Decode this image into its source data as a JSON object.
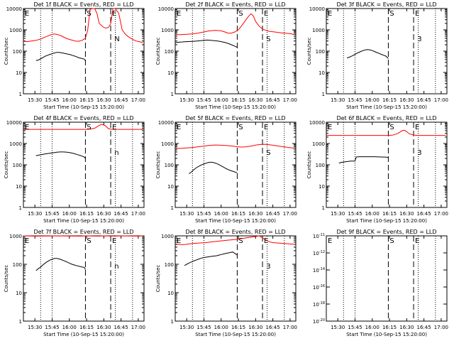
{
  "page": {
    "background": "#ffffff"
  },
  "styles": {
    "events_color": "#000000",
    "lld_color": "#ff0000",
    "axis_color": "#000000"
  },
  "x_ticks": [
    "15:30",
    "15:45",
    "16:00",
    "16:15",
    "16:30",
    "16:45",
    "17:00"
  ],
  "x_tick_minutes": [
    30,
    45,
    60,
    75,
    90,
    105,
    120
  ],
  "xlim_minutes": [
    20,
    125
  ],
  "dotted_lines_minutes": [
    35,
    45,
    100,
    115
  ],
  "dashed_lines_minutes": [
    74,
    96
  ],
  "xlabel": "Start Time (10-Sep-15 15:20:00)",
  "ylabel": "Counts/sec",
  "y_ticks_decade": [
    "1",
    "10",
    "100",
    "1000",
    "10000"
  ],
  "y_ticks_sci": [
    "10-11",
    "10-12",
    "10-14",
    "10-16",
    "10-18",
    "10-20"
  ],
  "chart_data": [
    {
      "type": "line",
      "title": "Det 1f BLACK = Events, RED = LLD",
      "xlabel": "Start Time (10-Sep-15 15:20:00)",
      "ylabel": "Counts/sec",
      "ylim": [
        1,
        10000
      ],
      "y_scale": "log",
      "markers": [
        {
          "label": "E",
          "x": 20
        },
        {
          "label": "S",
          "x": 74
        },
        {
          "label": "E",
          "x": 96
        },
        {
          "label": "N",
          "x": 98
        }
      ],
      "series": [
        {
          "color": "#ff0000",
          "x": [
            20,
            23,
            27,
            31,
            35,
            38,
            41,
            44,
            47,
            50,
            53,
            56,
            59,
            62,
            65,
            68,
            71,
            74,
            76,
            78,
            80,
            82,
            84,
            86,
            88,
            90,
            92,
            94,
            96,
            98,
            100,
            103,
            106,
            109,
            112,
            115,
            118,
            121,
            124
          ],
          "y": [
            290,
            280,
            300,
            320,
            370,
            440,
            510,
            590,
            640,
            600,
            520,
            430,
            370,
            330,
            300,
            290,
            320,
            400,
            1000,
            9000,
            10000,
            10000,
            6000,
            2000,
            1600,
            1300,
            1200,
            1300,
            1900,
            10000,
            10000,
            6000,
            1000,
            600,
            450,
            360,
            300,
            280,
            250
          ]
        },
        {
          "color": "#000000",
          "x": [
            31,
            33,
            35,
            37,
            39,
            41,
            43,
            45,
            47,
            49,
            51,
            53,
            55,
            57,
            59,
            61,
            63,
            65,
            67,
            69,
            71,
            72,
            73,
            74
          ],
          "y": [
            36,
            38,
            44,
            50,
            58,
            64,
            70,
            76,
            82,
            88,
            87,
            84,
            80,
            76,
            72,
            68,
            62,
            58,
            52,
            48,
            45,
            44,
            42,
            36
          ]
        }
      ]
    },
    {
      "type": "line",
      "title": "Det 2f BLACK = Events, RED = LLD",
      "xlabel": "Start Time (10-Sep-15 15:20:00)",
      "ylabel": "Counts/sec",
      "ylim": [
        1,
        10000
      ],
      "y_scale": "log",
      "markers": [
        {
          "label": "E",
          "x": 20
        },
        {
          "label": "S",
          "x": 74
        },
        {
          "label": "E",
          "x": 96
        },
        {
          "label": "S",
          "x": 98
        }
      ],
      "series": [
        {
          "color": "#ff0000",
          "x": [
            20,
            25,
            30,
            35,
            40,
            45,
            50,
            55,
            60,
            63,
            66,
            69,
            72,
            75,
            78,
            81,
            84,
            86,
            88,
            90,
            93,
            96,
            99,
            102,
            106,
            110,
            114,
            118,
            121,
            124
          ],
          "y": [
            600,
            600,
            620,
            650,
            700,
            800,
            900,
            950,
            900,
            800,
            700,
            700,
            800,
            1000,
            1600,
            2700,
            4400,
            5700,
            4500,
            2500,
            1500,
            1100,
            950,
            850,
            800,
            750,
            700,
            680,
            650,
            600
          ]
        },
        {
          "color": "#000000",
          "x": [
            20,
            22,
            24,
            26,
            28,
            30,
            33,
            36,
            39,
            42,
            45,
            48,
            51,
            54,
            57,
            60,
            63,
            66,
            69,
            72,
            74
          ],
          "y": [
            250,
            260,
            265,
            270,
            275,
            280,
            285,
            290,
            300,
            310,
            320,
            330,
            320,
            310,
            300,
            280,
            260,
            230,
            200,
            170,
            150
          ]
        }
      ]
    },
    {
      "type": "line",
      "title": "Det 3f BLACK = Events, RED = LLD",
      "xlabel": "Start Time (10-Sep-15 15:20:00)",
      "ylabel": "Counts/sec",
      "ylim": [
        1,
        10000
      ],
      "y_scale": "log",
      "markers": [
        {
          "label": "E",
          "x": 20
        },
        {
          "label": "S",
          "x": 74
        },
        {
          "label": "E",
          "x": 96
        },
        {
          "label": "3",
          "x": 98
        }
      ],
      "series": [
        {
          "color": "#000000",
          "x": [
            38,
            40,
            42,
            44,
            46,
            48,
            50,
            52,
            54,
            56,
            58,
            60,
            62,
            64,
            66,
            68,
            70,
            72,
            74
          ],
          "y": [
            48,
            52,
            58,
            66,
            76,
            86,
            96,
            106,
            114,
            118,
            114,
            106,
            96,
            86,
            78,
            70,
            64,
            58,
            45
          ]
        }
      ]
    },
    {
      "type": "line",
      "title": "Det 4f BLACK = Events, RED = LLD",
      "xlabel": "Start Time (10-Sep-15 15:20:00)",
      "ylabel": "Counts/sec",
      "ylim": [
        1,
        10000
      ],
      "y_scale": "log",
      "markers": [
        {
          "label": "E",
          "x": 20
        },
        {
          "label": "S",
          "x": 74
        },
        {
          "label": "E",
          "x": 96
        },
        {
          "label": "n",
          "x": 98
        }
      ],
      "series": [
        {
          "color": "#ff0000",
          "x": [
            20,
            30,
            40,
            50,
            60,
            70,
            74,
            78,
            82,
            85,
            88,
            91,
            94,
            97,
            100,
            105,
            110,
            115,
            120,
            124
          ],
          "y": [
            4600,
            4600,
            4600,
            4600,
            4600,
            4600,
            4600,
            4700,
            5200,
            6500,
            8000,
            7000,
            5000,
            4600,
            4600,
            4600,
            4600,
            4600,
            4600,
            4600
          ]
        },
        {
          "color": "#000000",
          "x": [
            31,
            34,
            37,
            40,
            43,
            46,
            49,
            52,
            55,
            58,
            61,
            64,
            67,
            70,
            73,
            74
          ],
          "y": [
            270,
            290,
            310,
            330,
            350,
            370,
            390,
            400,
            400,
            390,
            370,
            340,
            300,
            270,
            230,
            200
          ]
        }
      ]
    },
    {
      "type": "line",
      "title": "Det 5f BLACK = Events, RED = LLD",
      "xlabel": "Start Time (10-Sep-15 15:20:00)",
      "ylabel": "Counts/sec",
      "ylim": [
        1,
        10000
      ],
      "y_scale": "log",
      "markers": [
        {
          "label": "E",
          "x": 20
        },
        {
          "label": "S",
          "x": 74
        },
        {
          "label": "E",
          "x": 96
        },
        {
          "label": "S",
          "x": 98
        }
      ],
      "series": [
        {
          "color": "#ff0000",
          "x": [
            20,
            25,
            30,
            35,
            40,
            45,
            50,
            55,
            60,
            65,
            70,
            74,
            78,
            82,
            86,
            90,
            94,
            98,
            102,
            106,
            110,
            114,
            118,
            121,
            124
          ],
          "y": [
            580,
            600,
            620,
            650,
            700,
            760,
            820,
            850,
            830,
            800,
            760,
            700,
            680,
            700,
            760,
            840,
            900,
            920,
            880,
            820,
            760,
            700,
            660,
            630,
            600
          ]
        },
        {
          "color": "#000000",
          "x": [
            32,
            34,
            36,
            38,
            40,
            42,
            44,
            46,
            48,
            50,
            52,
            54,
            56,
            58,
            60,
            62,
            64,
            66,
            68,
            70,
            72,
            74
          ],
          "y": [
            38,
            46,
            58,
            70,
            82,
            94,
            105,
            115,
            125,
            132,
            132,
            125,
            115,
            102,
            90,
            78,
            68,
            60,
            54,
            50,
            46,
            42
          ]
        }
      ]
    },
    {
      "type": "line",
      "title": "Det 6f BLACK = Events, RED = LLD",
      "xlabel": "Start Time (10-Sep-15 15:20:00)",
      "ylabel": "Counts/sec",
      "ylim": [
        1,
        10000
      ],
      "y_scale": "log",
      "markers": [
        {
          "label": "E",
          "x": 20
        },
        {
          "label": "S",
          "x": 74
        },
        {
          "label": "E",
          "x": 96
        },
        {
          "label": "3",
          "x": 98
        }
      ],
      "series": [
        {
          "color": "#ff0000",
          "x": [
            20,
            30,
            40,
            50,
            60,
            70,
            74,
            78,
            82,
            84,
            86,
            88,
            90,
            92,
            96,
            100,
            105,
            110,
            115,
            120,
            124
          ],
          "y": [
            2400,
            2400,
            2400,
            2400,
            2400,
            2400,
            2400,
            2500,
            2900,
            3400,
            4000,
            4200,
            3600,
            2900,
            2500,
            2400,
            2400,
            2400,
            2400,
            2400,
            2400
          ]
        },
        {
          "color": "#000000",
          "x": [
            31,
            33,
            35,
            37,
            39,
            41,
            43,
            45,
            46,
            47,
            49,
            51,
            53,
            55,
            57,
            59,
            61,
            63,
            65,
            67,
            69,
            71,
            73,
            74
          ],
          "y": [
            120,
            130,
            135,
            140,
            145,
            150,
            150,
            150,
            230,
            235,
            240,
            240,
            240,
            240,
            240,
            240,
            240,
            240,
            235,
            235,
            230,
            230,
            225,
            220
          ]
        }
      ]
    },
    {
      "type": "line",
      "title": "Det 7f BLACK = Events, RED = LLD",
      "xlabel": "Start Time (10-Sep-15 15:20:00)",
      "ylabel": "Counts/sec",
      "ylim": [
        1,
        1000
      ],
      "y_scale": "log",
      "markers": [
        {
          "label": "E",
          "x": 20
        },
        {
          "label": "S",
          "x": 74
        },
        {
          "label": "E",
          "x": 96
        },
        {
          "label": "n",
          "x": 98
        }
      ],
      "series": [
        {
          "color": "#ff0000",
          "x": [
            20,
            30,
            40,
            50,
            60,
            70,
            74,
            80,
            86,
            90,
            94,
            98,
            102,
            108,
            114,
            120,
            124
          ],
          "y": [
            1000,
            980,
            990,
            1000,
            990,
            980,
            1000,
            990,
            980,
            1000,
            990,
            980,
            990,
            1000,
            990,
            980,
            1000
          ]
        },
        {
          "color": "#000000",
          "x": [
            31,
            33,
            35,
            37,
            39,
            41,
            43,
            45,
            47,
            49,
            51,
            53,
            55,
            57,
            59,
            61,
            63,
            65,
            67,
            69,
            71,
            73,
            74
          ],
          "y": [
            60,
            70,
            80,
            95,
            110,
            125,
            140,
            150,
            160,
            160,
            155,
            145,
            135,
            125,
            115,
            105,
            98,
            92,
            88,
            84,
            80,
            78,
            65
          ]
        }
      ]
    },
    {
      "type": "line",
      "title": "Det 8f BLACK = Events, RED = LLD",
      "xlabel": "Start Time (10-Sep-15 15:20:00)",
      "ylabel": "Counts/sec",
      "ylim": [
        1,
        1000
      ],
      "y_scale": "log",
      "markers": [
        {
          "label": "E",
          "x": 20
        },
        {
          "label": "S",
          "x": 74
        },
        {
          "label": "E",
          "x": 96
        },
        {
          "label": "3",
          "x": 98
        }
      ],
      "series": [
        {
          "color": "#ff0000",
          "x": [
            20,
            23,
            26,
            29,
            32,
            35,
            38,
            41,
            44,
            47,
            50,
            53,
            56,
            59,
            62,
            65,
            68,
            71,
            74,
            78,
            82,
            86,
            90,
            93,
            96,
            99,
            102,
            105,
            110,
            115,
            120,
            124
          ],
          "y": [
            520,
            500,
            490,
            500,
            520,
            540,
            550,
            560,
            570,
            580,
            600,
            620,
            640,
            660,
            680,
            700,
            720,
            740,
            760,
            800,
            850,
            900,
            950,
            1000,
            850,
            700,
            620,
            580,
            560,
            540,
            520,
            500
          ]
        },
        {
          "color": "#000000",
          "x": [
            28,
            30,
            32,
            34,
            36,
            38,
            40,
            42,
            44,
            46,
            48,
            50,
            52,
            54,
            56,
            58,
            60,
            62,
            64,
            66,
            68,
            70,
            72,
            74
          ],
          "y": [
            90,
            100,
            110,
            120,
            130,
            140,
            150,
            160,
            170,
            175,
            180,
            185,
            190,
            195,
            200,
            210,
            220,
            230,
            240,
            250,
            260,
            270,
            240,
            210
          ]
        }
      ]
    },
    {
      "type": "line",
      "title": "Det 9f BLACK = Events, RED = LLD",
      "xlabel": "Start Time (10-Sep-15 15:20:00)",
      "ylabel": "",
      "y_tick_labels": [
        "10-11",
        "10-12",
        "10-14",
        "10-16",
        "10-18",
        "10-20"
      ],
      "markers": [
        {
          "label": "E",
          "x": 20
        },
        {
          "label": "S",
          "x": 74
        },
        {
          "label": "E",
          "x": 96
        }
      ],
      "series": []
    }
  ]
}
